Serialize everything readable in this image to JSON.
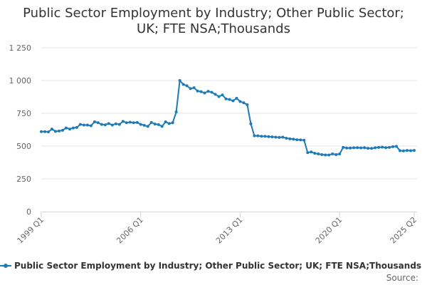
{
  "chart_data": {
    "type": "line",
    "title": "Public Sector Employment by Industry; Other Public Sector; UK; FTE NSA;Thousands",
    "title_lines": [
      "Public Sector Employment by Industry; Other Public Sector;",
      "UK; FTE NSA;Thousands"
    ],
    "xlabel": "",
    "ylabel": "",
    "ylim": [
      0,
      1250
    ],
    "yticks": [
      0,
      250,
      500,
      750,
      1000,
      1250
    ],
    "ytick_labels": [
      "0",
      "250",
      "500",
      "750",
      "1 000",
      "1 250"
    ],
    "xticks": [
      "1999 Q1",
      "2006 Q1",
      "2013 Q1",
      "2020 Q1",
      "2025 Q2"
    ],
    "grid": true,
    "legend_position": "bottom",
    "color": "#1f7ab6",
    "series": [
      {
        "name": "Public Sector Employment by Industry; Other Public Sector; UK; FTE NSA;Thousands",
        "start": "1999 Q1",
        "end": "2025 Q2",
        "values": [
          610,
          610,
          608,
          630,
          612,
          615,
          620,
          638,
          630,
          638,
          642,
          665,
          660,
          660,
          655,
          685,
          678,
          665,
          662,
          672,
          660,
          670,
          665,
          688,
          678,
          682,
          678,
          680,
          665,
          658,
          650,
          680,
          668,
          664,
          650,
          685,
          672,
          678,
          760,
          1000,
          970,
          960,
          938,
          945,
          920,
          915,
          905,
          918,
          910,
          895,
          878,
          890,
          860,
          855,
          845,
          865,
          840,
          830,
          815,
          670,
          578,
          578,
          575,
          575,
          572,
          570,
          568,
          566,
          568,
          560,
          555,
          552,
          548,
          547,
          545,
          450,
          455,
          445,
          440,
          435,
          432,
          432,
          440,
          435,
          440,
          490,
          485,
          485,
          487,
          488,
          486,
          488,
          483,
          482,
          487,
          490,
          492,
          488,
          490,
          495,
          498,
          465,
          463,
          467,
          465,
          467
        ]
      }
    ]
  },
  "legend": {
    "label": "Public Sector Employment by Industry; Other Public Sector; UK; FTE NSA;Thousands"
  },
  "footer": {
    "source_label": "Source:"
  }
}
